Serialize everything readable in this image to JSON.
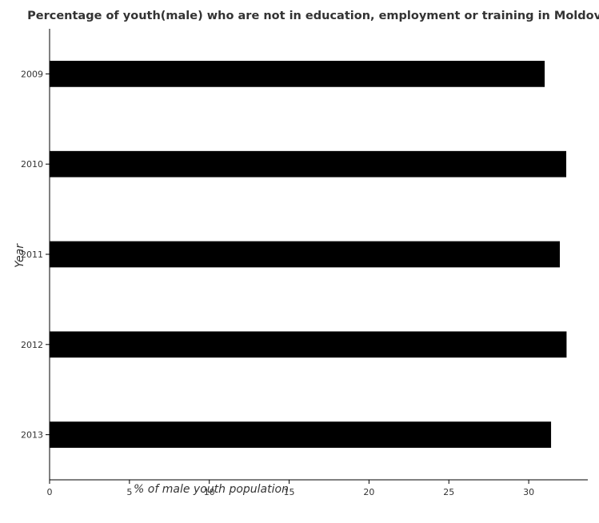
{
  "chart_data": {
    "type": "bar",
    "orientation": "horizontal",
    "title": "Percentage of youth(male) who are not in education, employment or training in Moldova",
    "xlabel": "% of male youth population",
    "ylabel": "Year",
    "categories": [
      "2009",
      "2010",
      "2011",
      "2012",
      "2013"
    ],
    "values": [
      31.0,
      32.35,
      31.95,
      32.37,
      31.4
    ],
    "xlim": [
      0,
      33.7
    ],
    "xticks": [
      0,
      5,
      10,
      15,
      20,
      25,
      30
    ],
    "bar_color": "#000000",
    "grid": false,
    "legend": "none"
  }
}
